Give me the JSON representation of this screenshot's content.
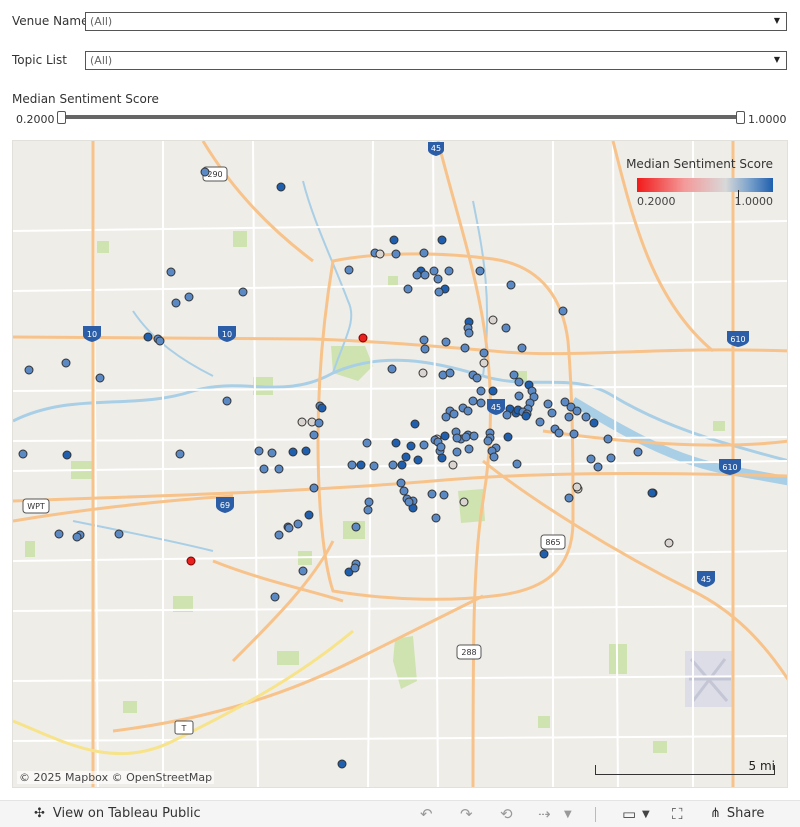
{
  "filters": {
    "venue": {
      "label": "Venue Name",
      "value": "(All)"
    },
    "topic": {
      "label": "Topic List",
      "value": "(All)"
    },
    "sentiment": {
      "label": "Median Sentiment Score",
      "min": "0.2000",
      "max": "1.0000"
    }
  },
  "map": {
    "legend": {
      "title": "Median Sentiment Score",
      "min": "0.2000",
      "max": "1.0000"
    },
    "attribution": "© 2025 Mapbox  © OpenStreetMap",
    "scale_label": "5 mi",
    "shields": {
      "us290": "290",
      "i45n": "45",
      "i10w": "10",
      "i10c": "10",
      "i610e": "610",
      "i45c": "45",
      "i69": "69",
      "wpt": "WPT",
      "i610se": "610",
      "tx865": "865",
      "i45s": "45",
      "tx288": "288",
      "toll": "T"
    },
    "colors": {
      "low": "#f11a1a",
      "mid": "#d8d8d8",
      "high": "#1f5fad",
      "road": "#f7c38a",
      "park": "#cfe3b0",
      "water": "#a9cfe6"
    }
  },
  "footer": {
    "view_label": "View on Tableau Public",
    "share_label": "Share"
  }
}
